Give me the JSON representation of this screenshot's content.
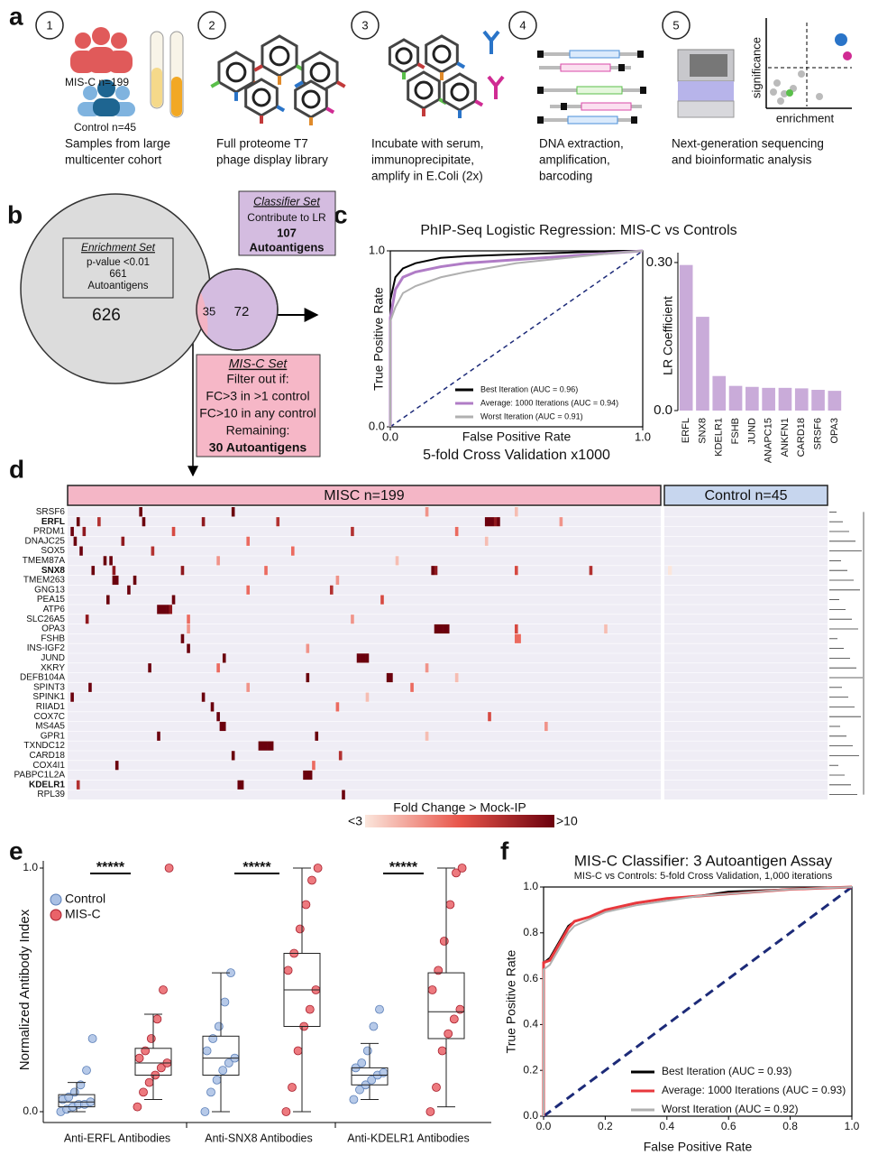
{
  "panel_labels": [
    "a",
    "b",
    "c",
    "d",
    "e",
    "f"
  ],
  "steps": [
    {
      "number": "1",
      "caption": [
        "Samples from large",
        "multicenter cohort"
      ],
      "labels": [
        "MIS-C n=199",
        "Control n=45"
      ]
    },
    {
      "number": "2",
      "caption": [
        "Full proteome T7",
        "phage display library"
      ]
    },
    {
      "number": "3",
      "caption": [
        "Incubate with serum,",
        "immunoprecipitate,",
        "amplify in E.Coli (2x)"
      ]
    },
    {
      "number": "4",
      "caption": [
        "DNA extraction,",
        "amplification,",
        "barcoding"
      ]
    },
    {
      "number": "5",
      "caption": [
        "Next-generation sequencing",
        "and bioinformatic analysis"
      ],
      "labels": [
        "significance",
        "enrichment"
      ]
    }
  ],
  "venn": {
    "enrichment_title": "Enrichment Set",
    "enrichment_lines": [
      "p-value <0.01",
      "661",
      "Autoantigens"
    ],
    "big": "626",
    "overlap": "35",
    "small": "72"
  },
  "classifier_box": {
    "title": "Classifier Set",
    "line": "Contribute to LR",
    "bold": [
      "107",
      "Autoantigens"
    ]
  },
  "misc_box": {
    "title": "MIS-C Set",
    "lines": [
      "Filter out if:",
      "FC>3 in >1 control",
      "FC>10 in any control",
      "Remaining:"
    ],
    "bold": "30 Autoantigens"
  },
  "chart_data": [
    {
      "type": "line",
      "title": "PhIP-Seq Logistic Regression: MIS-C vs Controls",
      "xlabel": "False Positive Rate",
      "x_note": "5-fold Cross Validation x1000",
      "ylabel": "True Positive Rate",
      "xlim": [
        0,
        1
      ],
      "ylim": [
        0,
        1
      ],
      "xticks": [
        {
          "value": 0,
          "label": "0.0"
        },
        {
          "value": 1,
          "label": "1.0"
        }
      ],
      "yticks": [
        {
          "value": 0,
          "label": "0.0"
        },
        {
          "value": 1,
          "label": "1.0"
        }
      ],
      "x": [
        0,
        0,
        0.02,
        0.05,
        0.1,
        0.2,
        0.3,
        0.5,
        0.7,
        0.9,
        1
      ],
      "series": [
        {
          "name": "Best Iteration (AUC = 0.96)",
          "color": "#000000",
          "values": [
            0,
            0.72,
            0.85,
            0.9,
            0.93,
            0.96,
            0.97,
            0.98,
            0.99,
            1,
            1
          ]
        },
        {
          "name": "Average: 1000 Iterations (AUC = 0.94)",
          "color": "#b07cc6",
          "values": [
            0,
            0.62,
            0.78,
            0.85,
            0.88,
            0.91,
            0.93,
            0.95,
            0.97,
            0.99,
            1
          ]
        },
        {
          "name": "Worst Iteration (AUC = 0.91)",
          "color": "#b0b0b0",
          "values": [
            0,
            0.6,
            0.68,
            0.76,
            0.8,
            0.85,
            0.88,
            0.93,
            0.96,
            0.99,
            1
          ]
        }
      ]
    },
    {
      "type": "bar",
      "ylabel": "LR Coefficient",
      "color": "#c9abd9",
      "categories": [
        "ERFL",
        "SNX8",
        "KDELR1",
        "FSHB",
        "JUND",
        "ANAPC15",
        "ANKFN1",
        "CARD18",
        "SRSF6",
        "OPA3"
      ],
      "values": [
        0.295,
        0.19,
        0.07,
        0.05,
        0.048,
        0.046,
        0.046,
        0.045,
        0.042,
        0.04
      ],
      "ylim": [
        0,
        0.32
      ],
      "yticks": [
        {
          "value": 0,
          "label": "0.0"
        },
        {
          "value": 0.3,
          "label": "0.30"
        }
      ]
    },
    {
      "type": "heatmap",
      "groups": [
        {
          "name": "MISC n=199",
          "n": 199,
          "color": "#f4b6c6"
        },
        {
          "name": "Control n=45",
          "n": 45,
          "color": "#c7d6ee"
        }
      ],
      "rows": [
        "SRSF6",
        "ERFL",
        "PRDM1",
        "DNAJC25",
        "SOX5",
        "TMEM87A",
        "SNX8",
        "TMEM263",
        "GNG13",
        "PEA15",
        "ATP6",
        "SLC26A5",
        "OPA3",
        "FSHB",
        "INS-IGF2",
        "JUND",
        "XKRY",
        "DEFB104A",
        "SPINT3",
        "SPINK1",
        "RIIAD1",
        "COX7C",
        "MS4A5",
        "GPR1",
        "TXNDC12",
        "CARD18",
        "COX4I1",
        "PABPC1L2A",
        "KDELR1",
        "RPL39"
      ],
      "bold_rows": [
        1,
        6,
        28
      ],
      "colors": [
        "#fbe6dc",
        "#e8554a",
        "#6b000d"
      ],
      "background": "#efedf5",
      "colorbar": {
        "label": "Fold Change > Mock-IP",
        "min": {
          "value": 3,
          "label": "<3"
        },
        "max": {
          "value": 10,
          "label": ">10"
        }
      },
      "hits": [
        [
          0,
          24,
          10
        ],
        [
          0,
          55,
          10
        ],
        [
          0,
          120,
          5
        ],
        [
          0,
          150,
          4
        ],
        [
          1,
          3,
          10
        ],
        [
          1,
          10,
          8
        ],
        [
          1,
          25,
          10
        ],
        [
          1,
          45,
          9
        ],
        [
          1,
          70,
          8
        ],
        [
          1,
          140,
          10
        ],
        [
          1,
          141,
          10
        ],
        [
          1,
          142,
          10
        ],
        [
          1,
          143,
          9
        ],
        [
          1,
          144,
          10
        ],
        [
          1,
          165,
          5
        ],
        [
          2,
          1,
          10
        ],
        [
          2,
          5,
          9
        ],
        [
          2,
          35,
          7
        ],
        [
          2,
          95,
          8
        ],
        [
          2,
          130,
          6
        ],
        [
          3,
          2,
          10
        ],
        [
          3,
          18,
          9
        ],
        [
          3,
          60,
          6
        ],
        [
          3,
          140,
          4
        ],
        [
          4,
          4,
          10
        ],
        [
          4,
          28,
          8
        ],
        [
          4,
          75,
          6
        ],
        [
          5,
          12,
          10
        ],
        [
          5,
          14,
          10
        ],
        [
          5,
          50,
          5
        ],
        [
          5,
          110,
          4
        ],
        [
          6,
          8,
          10
        ],
        [
          6,
          15,
          9
        ],
        [
          6,
          38,
          9
        ],
        [
          6,
          66,
          6
        ],
        [
          6,
          122,
          10
        ],
        [
          6,
          123,
          9
        ],
        [
          6,
          150,
          7
        ],
        [
          6,
          175,
          8
        ],
        [
          6,
          200,
          3
        ],
        [
          7,
          15,
          10
        ],
        [
          7,
          16,
          10
        ],
        [
          7,
          22,
          10
        ],
        [
          7,
          90,
          5
        ],
        [
          8,
          20,
          10
        ],
        [
          8,
          60,
          6
        ],
        [
          8,
          88,
          8
        ],
        [
          9,
          13,
          10
        ],
        [
          9,
          35,
          10
        ],
        [
          9,
          105,
          7
        ],
        [
          10,
          30,
          10
        ],
        [
          10,
          31,
          10
        ],
        [
          10,
          32,
          10
        ],
        [
          10,
          33,
          10
        ],
        [
          10,
          34,
          9
        ],
        [
          11,
          6,
          9
        ],
        [
          11,
          40,
          6
        ],
        [
          11,
          95,
          5
        ],
        [
          12,
          40,
          5
        ],
        [
          12,
          123,
          10
        ],
        [
          12,
          124,
          10
        ],
        [
          12,
          125,
          10
        ],
        [
          12,
          126,
          10
        ],
        [
          12,
          127,
          10
        ],
        [
          12,
          150,
          7
        ],
        [
          12,
          180,
          4
        ],
        [
          13,
          38,
          10
        ],
        [
          13,
          150,
          6
        ],
        [
          13,
          151,
          6
        ],
        [
          14,
          40,
          10
        ],
        [
          14,
          80,
          5
        ],
        [
          15,
          52,
          10
        ],
        [
          15,
          97,
          10
        ],
        [
          15,
          98,
          10
        ],
        [
          15,
          99,
          10
        ],
        [
          15,
          100,
          10
        ],
        [
          16,
          27,
          10
        ],
        [
          16,
          50,
          6
        ],
        [
          16,
          120,
          5
        ],
        [
          17,
          80,
          10
        ],
        [
          17,
          107,
          10
        ],
        [
          17,
          108,
          10
        ],
        [
          17,
          130,
          4
        ],
        [
          18,
          7,
          10
        ],
        [
          18,
          60,
          5
        ],
        [
          18,
          115,
          6
        ],
        [
          19,
          1,
          10
        ],
        [
          19,
          45,
          10
        ],
        [
          19,
          100,
          4
        ],
        [
          20,
          48,
          10
        ],
        [
          20,
          90,
          6
        ],
        [
          21,
          50,
          10
        ],
        [
          21,
          141,
          7
        ],
        [
          22,
          51,
          10
        ],
        [
          22,
          52,
          10
        ],
        [
          22,
          160,
          5
        ],
        [
          23,
          30,
          10
        ],
        [
          23,
          83,
          10
        ],
        [
          23,
          120,
          4
        ],
        [
          24,
          64,
          10
        ],
        [
          24,
          65,
          10
        ],
        [
          24,
          66,
          10
        ],
        [
          24,
          67,
          10
        ],
        [
          24,
          68,
          10
        ],
        [
          25,
          55,
          10
        ],
        [
          25,
          91,
          8
        ],
        [
          26,
          16,
          10
        ],
        [
          26,
          82,
          6
        ],
        [
          27,
          79,
          10
        ],
        [
          27,
          80,
          10
        ],
        [
          27,
          81,
          10
        ],
        [
          28,
          3,
          8
        ],
        [
          28,
          57,
          10
        ],
        [
          28,
          58,
          10
        ],
        [
          29,
          92,
          10
        ]
      ]
    },
    {
      "type": "box",
      "ylabel": "Normalized Antibody Index",
      "ylim": [
        0,
        1
      ],
      "yticks": [
        {
          "value": 0,
          "label": "0.0"
        },
        {
          "value": 1,
          "label": "1.0"
        }
      ],
      "series": [
        {
          "name": "Control",
          "color": "#a9c0e4",
          "edge": "#5b7fb8"
        },
        {
          "name": "MIS-C",
          "color": "#ea6369",
          "edge": "#a81e2c"
        }
      ],
      "groups": [
        {
          "label": "Anti-ERFL Antibodies",
          "significance": "*****",
          "boxes": [
            {
              "min": 0,
              "q1": 0.02,
              "median": 0.04,
              "q3": 0.07,
              "max": 0.12,
              "points": [
                0,
                0.01,
                0.02,
                0.03,
                0.03,
                0.04,
                0.05,
                0.06,
                0.08,
                0.11,
                0.17,
                0.3
              ]
            },
            {
              "min": 0.05,
              "q1": 0.15,
              "median": 0.2,
              "q3": 0.26,
              "max": 0.4,
              "points": [
                0.02,
                0.08,
                0.12,
                0.15,
                0.18,
                0.2,
                0.22,
                0.25,
                0.3,
                0.38,
                0.5,
                1
              ]
            }
          ]
        },
        {
          "label": "Anti-SNX8 Antibodies",
          "significance": "*****",
          "boxes": [
            {
              "min": 0,
              "q1": 0.15,
              "median": 0.22,
              "q3": 0.31,
              "max": 0.57,
              "points": [
                0,
                0.08,
                0.13,
                0.17,
                0.2,
                0.22,
                0.25,
                0.3,
                0.35,
                0.45,
                0.57
              ]
            },
            {
              "min": 0,
              "q1": 0.35,
              "median": 0.5,
              "q3": 0.65,
              "max": 1,
              "points": [
                0,
                0.1,
                0.25,
                0.35,
                0.42,
                0.5,
                0.58,
                0.65,
                0.75,
                0.85,
                0.95,
                1
              ]
            }
          ]
        },
        {
          "label": "Anti-KDELR1 Antibodies",
          "significance": "*****",
          "boxes": [
            {
              "min": 0.05,
              "q1": 0.11,
              "median": 0.15,
              "q3": 0.18,
              "max": 0.28,
              "points": [
                0.05,
                0.09,
                0.11,
                0.13,
                0.15,
                0.16,
                0.18,
                0.2,
                0.25,
                0.35,
                0.42
              ]
            },
            {
              "min": 0.02,
              "q1": 0.3,
              "median": 0.41,
              "q3": 0.57,
              "max": 1,
              "points": [
                0,
                0.1,
                0.25,
                0.32,
                0.38,
                0.42,
                0.5,
                0.58,
                0.7,
                0.85,
                0.98,
                1
              ]
            }
          ]
        }
      ]
    },
    {
      "type": "line",
      "title": "MIS-C Classifier: 3 Autoantigen Assay",
      "subtitle": "MIS-C vs Controls: 5-fold Cross Validation, 1,000 iterations",
      "xlabel": "False Positive Rate",
      "ylabel": "True Positive Rate",
      "xlim": [
        0,
        1
      ],
      "ylim": [
        0,
        1
      ],
      "xticks": [
        {
          "value": 0,
          "label": "0.0"
        },
        {
          "value": 0.2,
          "label": "0.2"
        },
        {
          "value": 0.4,
          "label": "0.4"
        },
        {
          "value": 0.6,
          "label": "0.6"
        },
        {
          "value": 0.8,
          "label": "0.8"
        },
        {
          "value": 1,
          "label": "1.0"
        }
      ],
      "yticks": [
        {
          "value": 0,
          "label": "0.0"
        },
        {
          "value": 0.2,
          "label": "0.2"
        },
        {
          "value": 0.4,
          "label": "0.4"
        },
        {
          "value": 0.6,
          "label": "0.6"
        },
        {
          "value": 0.8,
          "label": "0.8"
        },
        {
          "value": 1,
          "label": "1.0"
        }
      ],
      "x": [
        0,
        0,
        0.02,
        0.05,
        0.08,
        0.1,
        0.15,
        0.2,
        0.3,
        0.4,
        0.5,
        0.6,
        0.8,
        1
      ],
      "series": [
        {
          "name": "Best Iteration (AUC = 0.93)",
          "color": "#000000",
          "values": [
            0,
            0.67,
            0.69,
            0.76,
            0.83,
            0.85,
            0.87,
            0.9,
            0.93,
            0.95,
            0.96,
            0.98,
            0.99,
            1
          ]
        },
        {
          "name": "Average: 1000 Iterations (AUC = 0.93)",
          "color": "#e8383d",
          "values": [
            0,
            0.67,
            0.68,
            0.75,
            0.82,
            0.85,
            0.87,
            0.9,
            0.93,
            0.95,
            0.96,
            0.97,
            0.99,
            1
          ]
        },
        {
          "name": "Worst Iteration (AUC = 0.92)",
          "color": "#b0b0b0",
          "values": [
            0,
            0.64,
            0.66,
            0.73,
            0.8,
            0.83,
            0.86,
            0.89,
            0.92,
            0.94,
            0.96,
            0.97,
            0.99,
            1
          ]
        }
      ]
    }
  ]
}
